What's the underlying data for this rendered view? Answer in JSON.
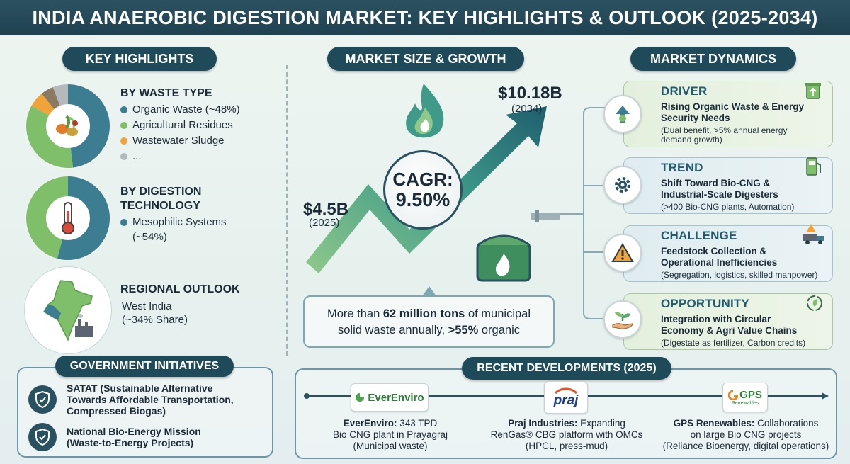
{
  "title": "INDIA ANAEROBIC DIGESTION MARKET: KEY HIGHLIGHTS & OUTLOOK (2025-2034)",
  "key_highlights": {
    "header": "KEY HIGHLIGHTS",
    "waste_type": {
      "heading": "BY WASTE TYPE",
      "items": [
        {
          "label": "Organic Waste (~48%)",
          "color": "#3d7d92"
        },
        {
          "label": "Agricultural Residues",
          "color": "#7fbf6a"
        },
        {
          "label": "Wastewater Sludge",
          "color": "#f0a33b"
        },
        {
          "label": "...",
          "color": "#b4b9bb"
        }
      ]
    },
    "digestion": {
      "heading_line1": "BY DIGESTION",
      "heading_line2": "TECHNOLOGY",
      "item_line1": "Mesophilic Systems",
      "item_line2": "(~54%)",
      "color": "#3d7d92"
    },
    "regional": {
      "heading": "REGIONAL OUTLOOK",
      "line1": "West India",
      "line2": "(~34% Share)"
    }
  },
  "government": {
    "header": "GOVERNMENT INITIATIVES",
    "items": [
      {
        "line1": "SATAT (Sustainable Alternative",
        "line2": "Towards Affordable Transportation,",
        "line3": "Compressed Biogas)"
      },
      {
        "line1": "National Bio-Energy Mission",
        "line2": "(Waste-to-Energy Projects)"
      }
    ]
  },
  "market": {
    "header": "MARKET SIZE & GROWTH",
    "end_value": "$10.18B",
    "end_year": "(2034)",
    "start_value": "$4.5B",
    "start_year": "(2025)",
    "cagr_label": "CAGR:",
    "cagr_value": "9.50%",
    "waste_note": {
      "pre": "More than ",
      "bold1": "62 million tons",
      "mid": " of municipal",
      "line2_pre": "solid waste annually, ",
      "bold2": ">55%",
      "post": " organic"
    }
  },
  "dynamics": {
    "header": "MARKET DYNAMICS",
    "cards": [
      {
        "title": "DRIVER",
        "line1": "Rising Organic Waste & Energy",
        "line2": "Security Needs",
        "sub1": "(Dual benefit, >5% annual energy",
        "sub2": "demand growth)"
      },
      {
        "title": "TREND",
        "line1": "Shift Toward Bio-CNG &",
        "line2": "Industrial-Scale Digesters",
        "sub1": "(>400 Bio-CNG plants, Automation)",
        "sub2": ""
      },
      {
        "title": "CHALLENGE",
        "line1": "Feedstock Collection &",
        "line2": "Operational Inefficiencies",
        "sub1": "(Segregation, logistics, skilled manpower)",
        "sub2": ""
      },
      {
        "title": "OPPORTUNITY",
        "line1": "Integration with Circular",
        "line2": "Economy & Agri Value Chains",
        "sub1": "(Digestate as fertilizer, Carbon credits)",
        "sub2": ""
      }
    ]
  },
  "developments": {
    "header": "RECENT DEVELOPMENTS (2025)",
    "items": [
      {
        "logo": "EverEnviro",
        "name": "EverEnviro:",
        "line1": " 343 TPD",
        "line2": "Bio CNG plant in Prayagraj",
        "line3": "(Municipal waste)"
      },
      {
        "logo": "praj",
        "name": "Praj Industries:",
        "line1": " Expanding",
        "line2": "RenGas® CBG platform with OMCs",
        "line3": "(HPCL, press-mud)"
      },
      {
        "logo": "GPS",
        "logo_sub": "Renewables",
        "name": "GPS Renewables:",
        "line1": " Collaborations",
        "line2": "on large Bio CNG projects",
        "line3": "(Reliance Bioenergy, digital operations)"
      }
    ]
  }
}
